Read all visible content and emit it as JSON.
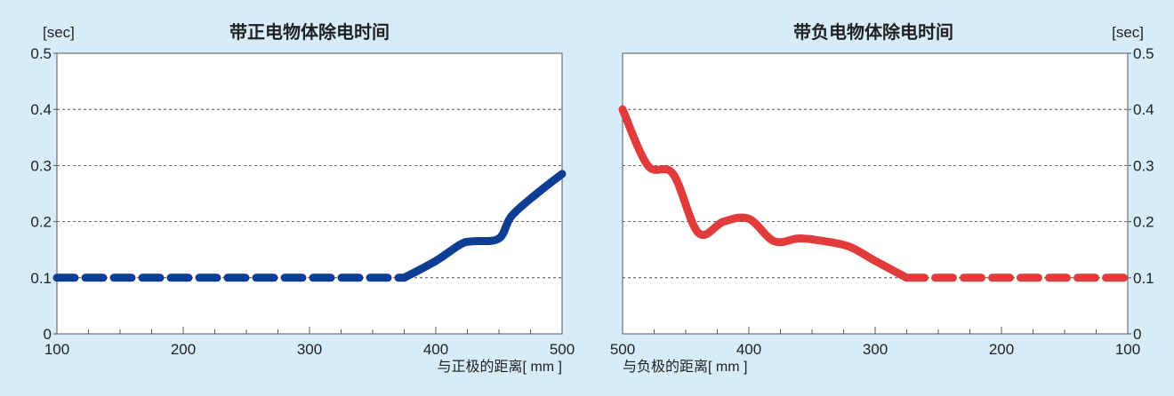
{
  "chart_data": [
    {
      "type": "line",
      "title": "带正电物体除电时间",
      "unit_label": "[sec]",
      "xlabel": "与正极的距离[ mm ]",
      "ylabel": "",
      "xlim": [
        100,
        500
      ],
      "ylim": [
        0,
        0.5
      ],
      "x_direction": "ascending",
      "y_axis_side": "left",
      "x_ticks": [
        100,
        200,
        300,
        400,
        500
      ],
      "y_tick_labels": [
        "0",
        "0.1",
        "0.2",
        "0.3",
        "0.4",
        "0.5"
      ],
      "x_tick_labels": [
        "100",
        "200",
        "300",
        "400",
        "500"
      ],
      "grid": "horizontal dashed",
      "series": [
        {
          "color": "#0d3e94",
          "dashed_segment": {
            "x": [
              100,
              375
            ],
            "y": [
              0.1,
              0.1
            ]
          },
          "solid_segment": {
            "x": [
              375,
              400,
              420,
              430,
              450,
              460,
              480,
              500
            ],
            "y": [
              0.1,
              0.13,
              0.16,
              0.165,
              0.17,
              0.21,
              0.25,
              0.285
            ]
          }
        }
      ]
    },
    {
      "type": "line",
      "title": "带负电物体除电时间",
      "unit_label": "[sec]",
      "xlabel": "与负极的距离[ mm ]",
      "ylabel": "",
      "xlim": [
        500,
        100
      ],
      "ylim": [
        0,
        0.5
      ],
      "x_direction": "descending",
      "y_axis_side": "right",
      "x_ticks": [
        500,
        400,
        300,
        200,
        100
      ],
      "y_tick_labels": [
        "0",
        "0.1",
        "0.2",
        "0.3",
        "0.4",
        "0.5"
      ],
      "x_tick_labels": [
        "500",
        "400",
        "300",
        "200",
        "100"
      ],
      "grid": "horizontal dashed",
      "series": [
        {
          "color": "#e23b3b",
          "solid_segment": {
            "x": [
              500,
              480,
              460,
              440,
              420,
              400,
              380,
              360,
              340,
              320,
              300,
              275
            ],
            "y": [
              0.4,
              0.3,
              0.285,
              0.18,
              0.2,
              0.205,
              0.165,
              0.17,
              0.165,
              0.155,
              0.13,
              0.1
            ]
          },
          "dashed_segment": {
            "x": [
              275,
              100
            ],
            "y": [
              0.1,
              0.1
            ]
          }
        }
      ]
    }
  ]
}
